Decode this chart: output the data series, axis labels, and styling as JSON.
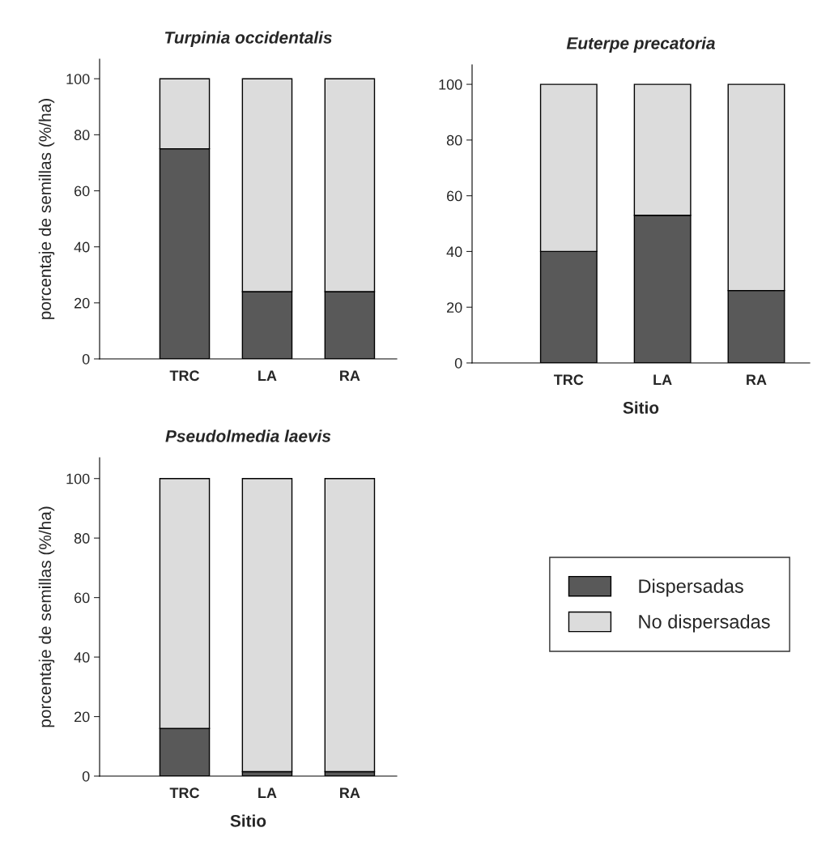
{
  "chart_data": [
    {
      "type": "bar",
      "stacked": true,
      "title": "Turpinia occidentalis",
      "ylabel": "porcentaje de semillas (%/ha)",
      "categories": [
        "TRC",
        "LA",
        "RA"
      ],
      "ylim": [
        0,
        107
      ],
      "yticks": [
        0,
        20,
        40,
        60,
        80,
        100
      ],
      "grid": false,
      "legend": false,
      "series": [
        {
          "color": "#595959",
          "values": [
            75,
            24,
            24
          ]
        },
        {
          "color": "#dcdcdc",
          "values": [
            25,
            76,
            76
          ]
        }
      ]
    },
    {
      "type": "bar",
      "stacked": true,
      "title": "Euterpe precatoria",
      "xlabel": "Sitio",
      "categories": [
        "TRC",
        "LA",
        "RA"
      ],
      "ylim": [
        0,
        107
      ],
      "yticks": [
        0,
        20,
        40,
        60,
        80,
        100
      ],
      "grid": false,
      "legend": false,
      "series": [
        {
          "color": "#595959",
          "values": [
            40,
            53,
            26
          ]
        },
        {
          "color": "#dcdcdc",
          "values": [
            60,
            47,
            74
          ]
        }
      ]
    },
    {
      "type": "bar",
      "stacked": true,
      "title": "Pseudolmedia laevis",
      "xlabel": "Sitio",
      "ylabel": "porcentaje de semillas (%/ha)",
      "categories": [
        "TRC",
        "LA",
        "RA"
      ],
      "ylim": [
        0,
        107
      ],
      "yticks": [
        0,
        20,
        40,
        60,
        80,
        100
      ],
      "grid": false,
      "legend": "right",
      "series": [
        {
          "name": "Dispersadas",
          "color": "#595959",
          "values": [
            16,
            1.5,
            1.5
          ]
        },
        {
          "name": "No dispersadas",
          "color": "#dcdcdc",
          "values": [
            84,
            98.5,
            98.5
          ]
        }
      ]
    }
  ]
}
